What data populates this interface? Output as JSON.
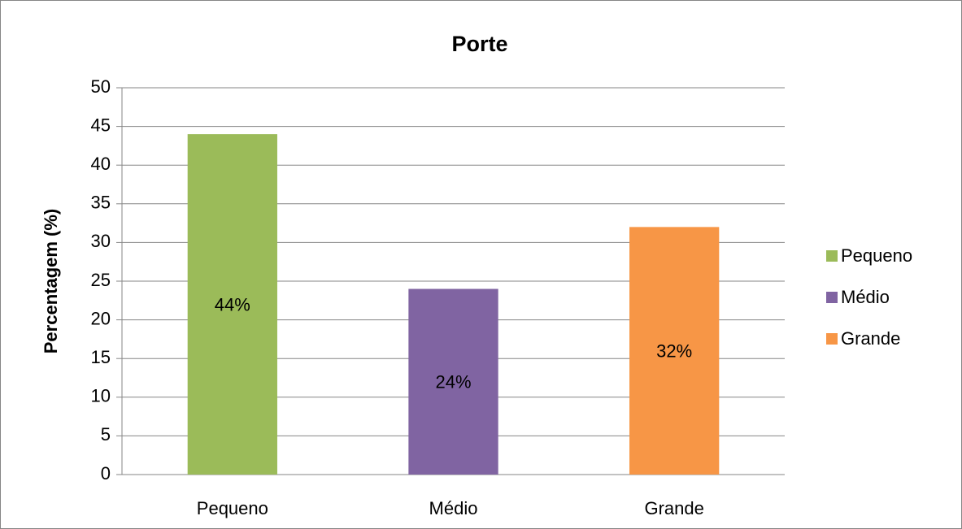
{
  "chart_data": {
    "type": "bar",
    "title": "Porte",
    "y_label": "Percentagem (%)",
    "categories": [
      "Pequeno",
      "Médio",
      "Grande"
    ],
    "values": [
      44,
      24,
      32
    ],
    "value_labels": [
      "44%",
      "24%",
      "32%"
    ],
    "colors": [
      "#9bbb59",
      "#8064a2",
      "#f79646"
    ],
    "ylim": [
      0,
      50
    ],
    "yticks": [
      0,
      5,
      10,
      15,
      20,
      25,
      30,
      35,
      40,
      45,
      50
    ],
    "grid": true,
    "legend": "right"
  }
}
